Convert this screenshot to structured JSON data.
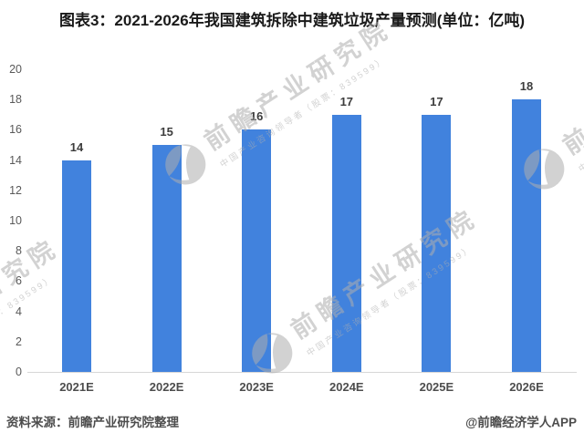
{
  "title": "图表3：2021-2026年我国建筑拆除中建筑垃圾产量预测(单位：亿吨)",
  "footer": {
    "source_note": "资料来源：前瞻产业研究院整理",
    "brand_note": "@前瞻经济学人APP"
  },
  "watermark": {
    "main": "前瞻产业研究院",
    "sub": "中国产业咨询领导者（股票：839599）"
  },
  "chart_data": {
    "type": "bar",
    "title": "图表3：2021-2026年我国建筑拆除中建筑垃圾产量预测(单位：亿吨)",
    "categories": [
      "2021E",
      "2022E",
      "2023E",
      "2024E",
      "2025E",
      "2026E"
    ],
    "values": [
      14,
      15,
      16,
      17,
      17,
      18
    ],
    "unit": "亿吨",
    "xlabel": "",
    "ylabel": "",
    "ylim": [
      0,
      20
    ],
    "yticks": [
      0,
      2,
      4,
      6,
      8,
      10,
      12,
      14,
      16,
      18,
      20
    ],
    "bar_color": "#4182DD",
    "grid": false,
    "legend_position": "none",
    "data_labels": true
  }
}
